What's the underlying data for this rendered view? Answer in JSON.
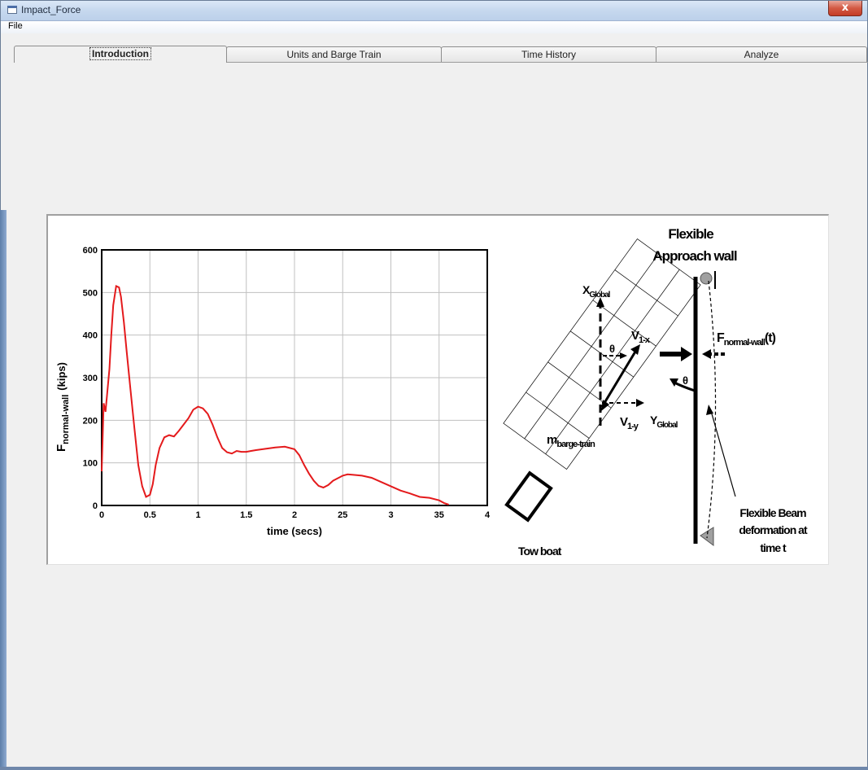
{
  "window": {
    "title": "Impact_Force",
    "close_label": "x"
  },
  "menu": {
    "file_label": "File"
  },
  "tabs": [
    {
      "label": "Introduction",
      "active": true
    },
    {
      "label": "Units and Barge Train",
      "active": false
    },
    {
      "label": "Time History",
      "active": false
    },
    {
      "label": "Analyze",
      "active": false
    }
  ],
  "colors": {
    "series": "#e41a1c",
    "grid": "#c0c0c0",
    "titlebar": "#c6d8ee",
    "close": "#c43c26"
  },
  "chart_data": {
    "type": "line",
    "title": "",
    "xlabel": "time (secs)",
    "ylabel_main": "F",
    "ylabel_sub": "normal-wall",
    "ylabel_unit": "(kips)",
    "xlim": [
      0,
      4
    ],
    "ylim": [
      0,
      600
    ],
    "grid": true,
    "x_ticks": [
      "0",
      "0.5",
      "1",
      "1.5",
      "2",
      "25",
      "3",
      "35",
      "4"
    ],
    "y_ticks": [
      "0",
      "100",
      "200",
      "300",
      "400",
      "500",
      "600"
    ],
    "series": [
      {
        "x": [
          0.0,
          0.02,
          0.04,
          0.06,
          0.08,
          0.1,
          0.12,
          0.15,
          0.18,
          0.2,
          0.23,
          0.26,
          0.3,
          0.34,
          0.38,
          0.42,
          0.46,
          0.5,
          0.53,
          0.56,
          0.6,
          0.65,
          0.7,
          0.75,
          0.8,
          0.85,
          0.9,
          0.95,
          1.0,
          1.05,
          1.1,
          1.15,
          1.2,
          1.25,
          1.3,
          1.35,
          1.4,
          1.45,
          1.5,
          1.55,
          1.6,
          1.7,
          1.8,
          1.9,
          2.0,
          2.05,
          2.1,
          2.15,
          2.2,
          2.25,
          2.3,
          2.35,
          2.4,
          2.5,
          2.55,
          2.6,
          2.7,
          2.8,
          2.9,
          3.0,
          3.1,
          3.2,
          3.3,
          3.4,
          3.5,
          3.55,
          3.6
        ],
        "y": [
          80,
          240,
          220,
          270,
          320,
          400,
          470,
          515,
          512,
          490,
          430,
          360,
          270,
          180,
          95,
          45,
          20,
          25,
          50,
          95,
          135,
          160,
          165,
          162,
          175,
          190,
          205,
          225,
          232,
          228,
          215,
          190,
          160,
          135,
          125,
          122,
          128,
          126,
          126,
          128,
          130,
          133,
          136,
          138,
          132,
          118,
          95,
          75,
          58,
          46,
          42,
          48,
          58,
          70,
          73,
          72,
          70,
          65,
          55,
          45,
          35,
          28,
          20,
          18,
          12,
          6,
          2
        ]
      }
    ]
  },
  "diagram": {
    "wall_title_line1": "Flexible",
    "wall_title_line2": "Approach wall",
    "x_global": "X",
    "x_global_sub": "Global",
    "y_global": "Y",
    "y_global_sub": "Global",
    "v1x": "V",
    "v1x_sub": "1-x",
    "v1y": "V",
    "v1y_sub": "1-y",
    "theta1": "θ",
    "theta2": "θ",
    "mass": "m",
    "mass_sub": "barge-train",
    "force": "F",
    "force_sub": "normal-wall",
    "force_suffix": "(t)",
    "towboat": "Tow boat",
    "beam_line1": "Flexible Beam",
    "beam_line2": "deformation at",
    "beam_line3": "time t"
  }
}
